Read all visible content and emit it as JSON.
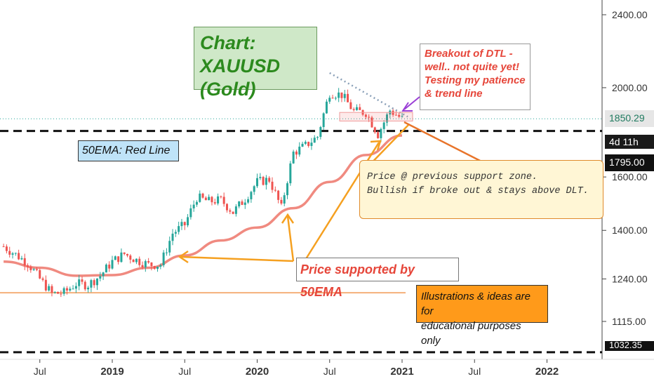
{
  "chart_data": {
    "type": "candlestick",
    "symbol": "XAUUSD",
    "timeframe": "weekly",
    "x_ticks": [
      "Jul",
      "2019",
      "Jul",
      "2020",
      "Jul",
      "2021",
      "Jul",
      "2022"
    ],
    "y_ticks": [
      2400.0,
      2000.0,
      1600.0,
      1400.0,
      1240.0,
      1115.0
    ],
    "ylim": [
      1032.35,
      2450
    ],
    "y_scale": "log",
    "last_price": "1850.29",
    "countdown": "4d 11h",
    "support_level_price": "1795.00",
    "low_level_price": "1032.35",
    "price_points": [
      {
        "date": "2018-04",
        "price": 1345
      },
      {
        "date": "2018-05",
        "price": 1318
      },
      {
        "date": "2018-06",
        "price": 1290
      },
      {
        "date": "2018-07",
        "price": 1240
      },
      {
        "date": "2018-08",
        "price": 1195
      },
      {
        "date": "2018-09",
        "price": 1198
      },
      {
        "date": "2018-10",
        "price": 1225
      },
      {
        "date": "2018-11",
        "price": 1222
      },
      {
        "date": "2018-12",
        "price": 1250
      },
      {
        "date": "2019-01",
        "price": 1295
      },
      {
        "date": "2019-02",
        "price": 1320
      },
      {
        "date": "2019-03",
        "price": 1300
      },
      {
        "date": "2019-04",
        "price": 1285
      },
      {
        "date": "2019-05",
        "price": 1285
      },
      {
        "date": "2019-06",
        "price": 1390
      },
      {
        "date": "2019-07",
        "price": 1420
      },
      {
        "date": "2019-08",
        "price": 1520
      },
      {
        "date": "2019-09",
        "price": 1505
      },
      {
        "date": "2019-10",
        "price": 1510
      },
      {
        "date": "2019-11",
        "price": 1465
      },
      {
        "date": "2019-12",
        "price": 1515
      },
      {
        "date": "2020-01",
        "price": 1580
      },
      {
        "date": "2020-02",
        "price": 1590
      },
      {
        "date": "2020-03",
        "price": 1480
      },
      {
        "date": "2020-04",
        "price": 1700
      },
      {
        "date": "2020-05",
        "price": 1730
      },
      {
        "date": "2020-06",
        "price": 1770
      },
      {
        "date": "2020-07",
        "price": 1975
      },
      {
        "date": "2020-08",
        "price": 1965
      },
      {
        "date": "2020-09",
        "price": 1885
      },
      {
        "date": "2020-10",
        "price": 1880
      },
      {
        "date": "2020-11",
        "price": 1780
      },
      {
        "date": "2020-12",
        "price": 1890
      },
      {
        "date": "2021-01",
        "price": 1850
      }
    ],
    "ema50_points": [
      {
        "date": "2018-04",
        "price": 1295
      },
      {
        "date": "2018-07",
        "price": 1275
      },
      {
        "date": "2018-10",
        "price": 1250
      },
      {
        "date": "2019-01",
        "price": 1252
      },
      {
        "date": "2019-04",
        "price": 1275
      },
      {
        "date": "2019-07",
        "price": 1315
      },
      {
        "date": "2019-10",
        "price": 1365
      },
      {
        "date": "2020-01",
        "price": 1410
      },
      {
        "date": "2020-04",
        "price": 1480
      },
      {
        "date": "2020-07",
        "price": 1580
      },
      {
        "date": "2020-10",
        "price": 1690
      },
      {
        "date": "2021-01",
        "price": 1775
      }
    ],
    "horizontal_levels": [
      1795.0,
      1032.35,
      1198
    ],
    "annotations": {
      "title": "Chart: XAUUSD (Gold)",
      "ema_label": "50EMA: Red Line",
      "dtl_note": "Breakout of DTL - well.. not quite yet! Testing my patience & trend line",
      "support_note": "Price @ previous support zone. Bullish if broke out & stays above DLT.",
      "ema_support": "Price supported by 50EMA",
      "disclaimer": "Illustrations & ideas are for educational purposes only"
    }
  },
  "colors": {
    "up": "#26a69a",
    "down": "#ef5350",
    "ema": "#f08a80",
    "arrow": "#f5a020",
    "level": "#111111",
    "hline": "#f5b07a",
    "dtl": "#8aa0b8",
    "axis": "#333333"
  },
  "notes": {
    "title_lines": [
      "Chart: XAUUSD",
      "(Gold)"
    ],
    "ema_label": "50EMA: Red Line",
    "dtl_lines": [
      "Breakout of DTL -",
      "well.. not quite yet!",
      "Testing my patience",
      "& trend line"
    ],
    "support_lines": [
      "Price @ previous support zone.",
      "Bullish if broke out & stays above DLT."
    ],
    "ema_support": "Price supported by 50EMA",
    "edu_lines": [
      "Illustrations & ideas are for",
      "educational purposes only"
    ]
  }
}
